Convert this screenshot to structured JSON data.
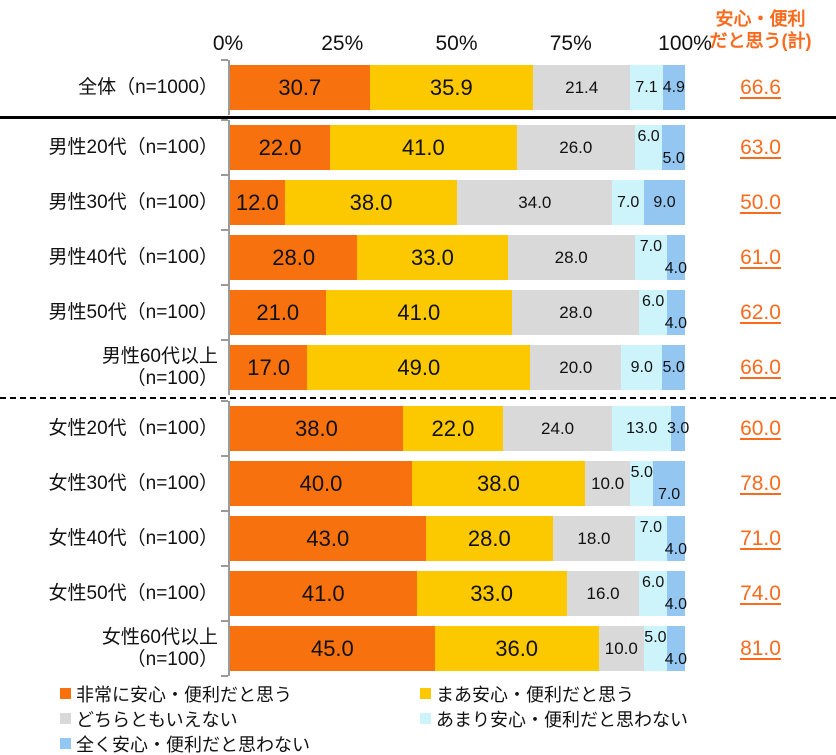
{
  "chart_data": {
    "type": "bar",
    "orientation": "horizontal-stacked",
    "title": "",
    "x_ticks": [
      "0%",
      "25%",
      "50%",
      "75%",
      "100%"
    ],
    "x_range": [
      0,
      100
    ],
    "grid": false,
    "total_header": "安心・便利\nだと思う(計)",
    "accent_color": "#fa6b1e",
    "legend_position": "bottom",
    "legend": [
      {
        "name": "非常に安心・便利だと思う",
        "color": "#f7720e"
      },
      {
        "name": "まあ安心・便利だと思う",
        "color": "#fcc800"
      },
      {
        "name": "どちらともいえない",
        "color": "#d9d9d9"
      },
      {
        "name": "あまり安心・便利だと思わない",
        "color": "#cdf4fb"
      },
      {
        "name": "全く安心・便利だと思わない",
        "color": "#94c6f2"
      }
    ],
    "legend_layout": [
      [
        0,
        1
      ],
      [
        2,
        3
      ],
      [
        4
      ]
    ],
    "rows": [
      {
        "label": "全体（n=1000）",
        "values": [
          30.7,
          35.9,
          21.4,
          7.1,
          4.9
        ],
        "total": "66.6",
        "label_dy": [
          0,
          0,
          0,
          0,
          0
        ],
        "divider_after": "solid"
      },
      {
        "label": "男性20代（n=100）",
        "values": [
          22.0,
          41.0,
          26.0,
          6.0,
          5.0
        ],
        "total": "63.0",
        "label_dy": [
          0,
          0,
          0,
          -1,
          1
        ]
      },
      {
        "label": "男性30代（n=100）",
        "values": [
          12.0,
          38.0,
          34.0,
          7.0,
          9.0
        ],
        "total": "50.0",
        "label_dy": [
          0,
          0,
          0,
          0,
          0
        ]
      },
      {
        "label": "男性40代（n=100）",
        "values": [
          28.0,
          33.0,
          28.0,
          7.0,
          4.0
        ],
        "total": "61.0",
        "label_dy": [
          0,
          0,
          0,
          -1,
          1
        ]
      },
      {
        "label": "男性50代（n=100）",
        "values": [
          21.0,
          41.0,
          28.0,
          6.0,
          4.0
        ],
        "total": "62.0",
        "label_dy": [
          0,
          0,
          0,
          -1,
          1
        ]
      },
      {
        "label": "男性60代以上\n（n=100）",
        "values": [
          17.0,
          49.0,
          20.0,
          9.0,
          5.0
        ],
        "total": "66.0",
        "label_dy": [
          0,
          0,
          0,
          0,
          0
        ],
        "divider_after": "dashed"
      },
      {
        "label": "女性20代（n=100）",
        "values": [
          38.0,
          22.0,
          24.0,
          13.0,
          3.0
        ],
        "total": "60.0",
        "label_dy": [
          0,
          0,
          0,
          0,
          0
        ]
      },
      {
        "label": "女性30代（n=100）",
        "values": [
          40.0,
          38.0,
          10.0,
          5.0,
          7.0
        ],
        "total": "78.0",
        "label_dy": [
          0,
          0,
          0,
          -1,
          1
        ]
      },
      {
        "label": "女性40代（n=100）",
        "values": [
          43.0,
          28.0,
          18.0,
          7.0,
          4.0
        ],
        "total": "71.0",
        "label_dy": [
          0,
          0,
          0,
          -1,
          1
        ]
      },
      {
        "label": "女性50代（n=100）",
        "values": [
          41.0,
          33.0,
          16.0,
          6.0,
          4.0
        ],
        "total": "74.0",
        "label_dy": [
          0,
          0,
          0,
          -1,
          1
        ]
      },
      {
        "label": "女性60代以上\n（n=100）",
        "values": [
          45.0,
          36.0,
          10.0,
          5.0,
          4.0
        ],
        "total": "81.0",
        "label_dy": [
          0,
          0,
          0,
          -1,
          1
        ]
      }
    ]
  }
}
